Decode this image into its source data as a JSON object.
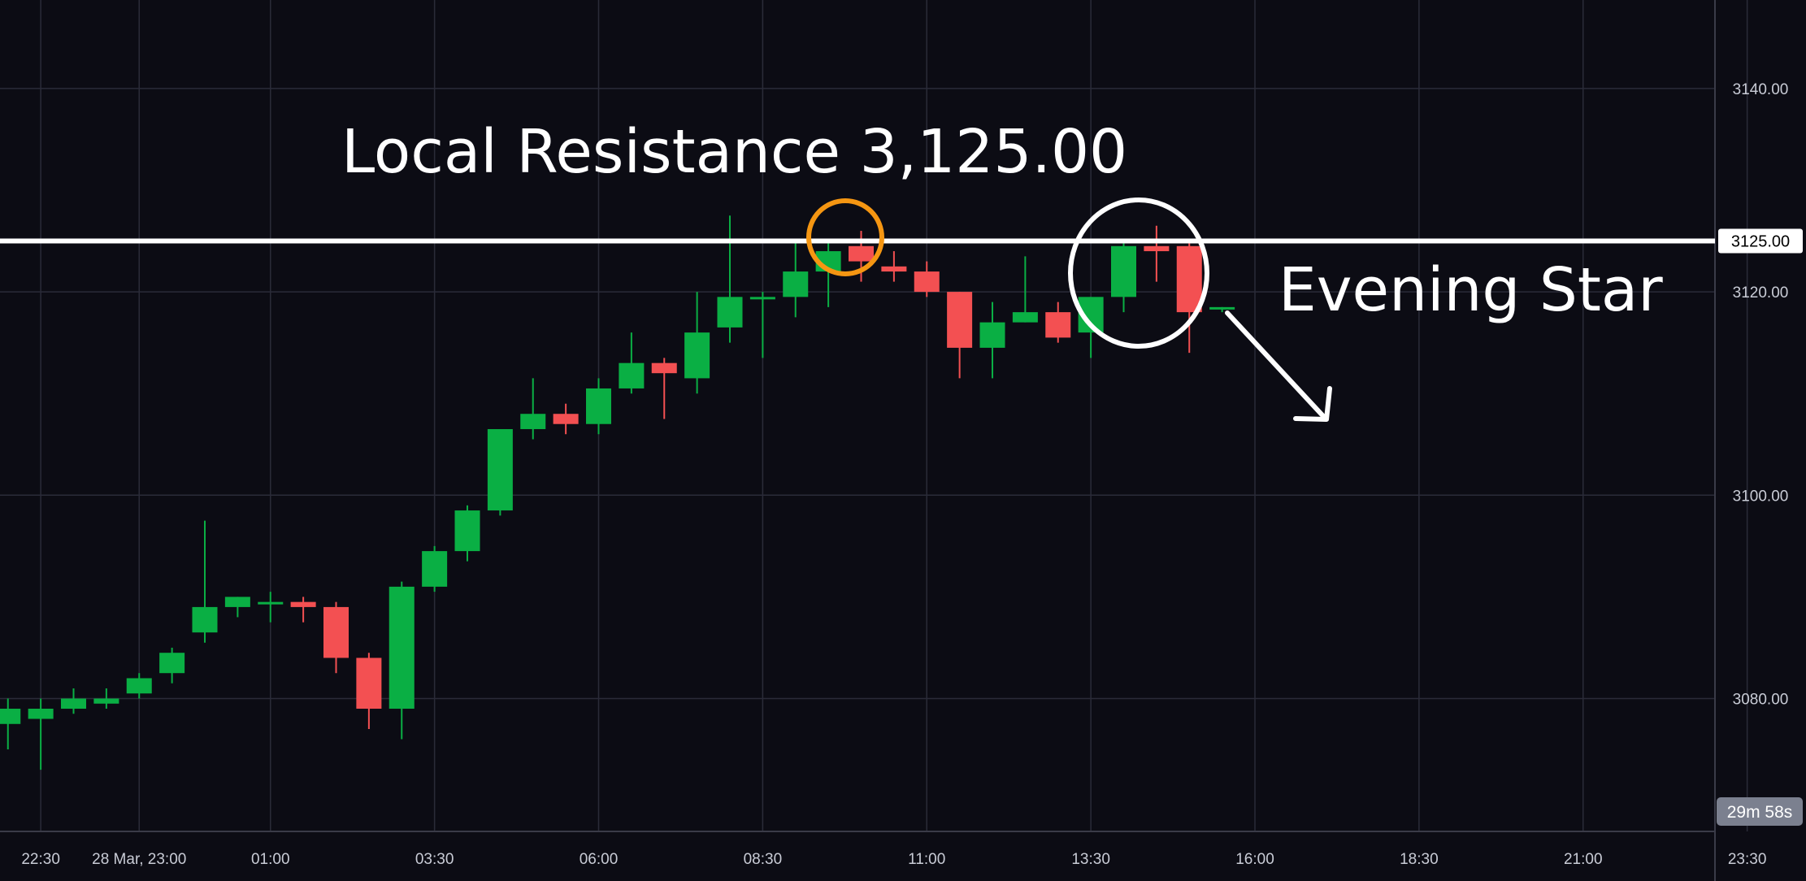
{
  "chart_data": {
    "type": "candlestick",
    "title": "",
    "xlabel": "",
    "ylabel": "",
    "ylim": [
      3066,
      3150
    ],
    "y_ticks": [
      "3080.00",
      "3100.00",
      "3120.00",
      "3140.00"
    ],
    "x_ticks": [
      {
        "label": "22:30",
        "x_hours": -2.5
      },
      {
        "label": "28 Mar, 23:00",
        "x_hours": -1
      },
      {
        "label": "01:00",
        "x_hours": 1
      },
      {
        "label": "03:30",
        "x_hours": 3.5
      },
      {
        "label": "06:00",
        "x_hours": 6
      },
      {
        "label": "08:30",
        "x_hours": 8.5
      },
      {
        "label": "11:00",
        "x_hours": 11
      },
      {
        "label": "13:30",
        "x_hours": 13.5
      },
      {
        "label": "16:00",
        "x_hours": 16
      },
      {
        "label": "18:30",
        "x_hours": 18.5
      },
      {
        "label": "21:00",
        "x_hours": 21
      },
      {
        "label": "23:30",
        "x_hours": 23.5
      }
    ],
    "candle_interval_minutes": 30,
    "colors": {
      "up": "#0aaf44",
      "down": "#f35052",
      "background": "#0c0c14",
      "grid": "#2a2b38",
      "axis_text": "#c9ccd6",
      "annotation": "#ffffff",
      "highlight": "#f59612"
    },
    "candles": [
      {
        "t": -3.0,
        "o": 3077.5,
        "h": 3080.0,
        "l": 3075.0,
        "c": 3079.0
      },
      {
        "t": -2.5,
        "o": 3078.0,
        "h": 3080.0,
        "l": 3073.0,
        "c": 3079.0
      },
      {
        "t": -2.0,
        "o": 3079.0,
        "h": 3081.0,
        "l": 3078.5,
        "c": 3080.0
      },
      {
        "t": -1.5,
        "o": 3079.5,
        "h": 3081.0,
        "l": 3079.0,
        "c": 3080.0
      },
      {
        "t": -1.0,
        "o": 3080.5,
        "h": 3082.5,
        "l": 3080.0,
        "c": 3082.0
      },
      {
        "t": -0.5,
        "o": 3082.5,
        "h": 3085.0,
        "l": 3081.5,
        "c": 3084.5
      },
      {
        "t": 0.0,
        "o": 3086.5,
        "h": 3097.5,
        "l": 3085.5,
        "c": 3089.0
      },
      {
        "t": 0.5,
        "o": 3089.0,
        "h": 3090.0,
        "l": 3088.0,
        "c": 3090.0
      },
      {
        "t": 1.0,
        "o": 3089.5,
        "h": 3090.5,
        "l": 3087.5,
        "c": 3089.5
      },
      {
        "t": 1.5,
        "o": 3089.5,
        "h": 3090.0,
        "l": 3087.5,
        "c": 3089.0
      },
      {
        "t": 2.0,
        "o": 3089.0,
        "h": 3089.5,
        "l": 3082.5,
        "c": 3084.0
      },
      {
        "t": 2.5,
        "o": 3084.0,
        "h": 3084.5,
        "l": 3077.0,
        "c": 3079.0
      },
      {
        "t": 3.0,
        "o": 3079.0,
        "h": 3091.5,
        "l": 3076.0,
        "c": 3091.0
      },
      {
        "t": 3.5,
        "o": 3091.0,
        "h": 3095.0,
        "l": 3090.5,
        "c": 3094.5
      },
      {
        "t": 4.0,
        "o": 3094.5,
        "h": 3099.0,
        "l": 3093.5,
        "c": 3098.5
      },
      {
        "t": 4.5,
        "o": 3098.5,
        "h": 3106.5,
        "l": 3098.0,
        "c": 3106.5
      },
      {
        "t": 5.0,
        "o": 3106.5,
        "h": 3111.5,
        "l": 3105.5,
        "c": 3108.0
      },
      {
        "t": 5.5,
        "o": 3108.0,
        "h": 3109.0,
        "l": 3106.0,
        "c": 3107.0
      },
      {
        "t": 6.0,
        "o": 3107.0,
        "h": 3111.5,
        "l": 3106.0,
        "c": 3110.5
      },
      {
        "t": 6.5,
        "o": 3110.5,
        "h": 3116.0,
        "l": 3110.0,
        "c": 3113.0
      },
      {
        "t": 7.0,
        "o": 3113.0,
        "h": 3113.5,
        "l": 3107.5,
        "c": 3112.0
      },
      {
        "t": 7.5,
        "o": 3111.5,
        "h": 3120.0,
        "l": 3110.0,
        "c": 3116.0
      },
      {
        "t": 8.0,
        "o": 3116.5,
        "h": 3127.5,
        "l": 3115.0,
        "c": 3119.5
      },
      {
        "t": 8.5,
        "o": 3119.5,
        "h": 3120.0,
        "l": 3113.5,
        "c": 3119.5
      },
      {
        "t": 9.0,
        "o": 3119.5,
        "h": 3125.0,
        "l": 3117.5,
        "c": 3122.0
      },
      {
        "t": 9.5,
        "o": 3122.0,
        "h": 3125.0,
        "l": 3118.5,
        "c": 3124.0
      },
      {
        "t": 10.0,
        "o": 3124.5,
        "h": 3126.0,
        "l": 3121.0,
        "c": 3123.0
      },
      {
        "t": 10.5,
        "o": 3122.5,
        "h": 3124.0,
        "l": 3121.0,
        "c": 3122.0
      },
      {
        "t": 11.0,
        "o": 3122.0,
        "h": 3123.0,
        "l": 3119.5,
        "c": 3120.0
      },
      {
        "t": 11.5,
        "o": 3120.0,
        "h": 3120.0,
        "l": 3111.5,
        "c": 3114.5
      },
      {
        "t": 12.0,
        "o": 3114.5,
        "h": 3119.0,
        "l": 3111.5,
        "c": 3117.0
      },
      {
        "t": 12.5,
        "o": 3117.0,
        "h": 3123.5,
        "l": 3117.0,
        "c": 3118.0
      },
      {
        "t": 13.0,
        "o": 3118.0,
        "h": 3119.0,
        "l": 3115.0,
        "c": 3115.5
      },
      {
        "t": 13.5,
        "o": 3116.0,
        "h": 3119.5,
        "l": 3113.5,
        "c": 3119.5
      },
      {
        "t": 14.0,
        "o": 3119.5,
        "h": 3125.0,
        "l": 3118.0,
        "c": 3124.5
      },
      {
        "t": 14.5,
        "o": 3124.5,
        "h": 3126.5,
        "l": 3121.0,
        "c": 3124.0
      },
      {
        "t": 15.0,
        "o": 3124.5,
        "h": 3125.0,
        "l": 3114.0,
        "c": 3118.0
      },
      {
        "t": 15.5,
        "o": 3118.5,
        "h": 3118.5,
        "l": 3118.0,
        "c": 3118.5
      }
    ],
    "resistance": {
      "value": 3125.0,
      "price_label": "3125.00",
      "text": "Local Resistance 3,125.00"
    },
    "annotations": {
      "pattern_label": "Evening Star"
    },
    "countdown": "29m 58s"
  }
}
